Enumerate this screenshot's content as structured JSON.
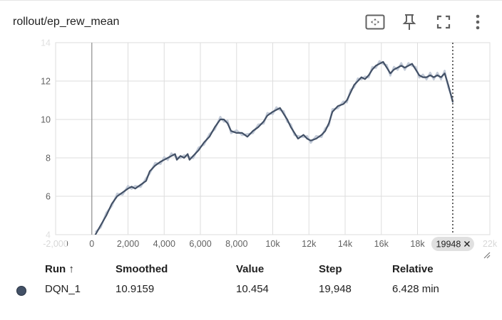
{
  "card": {
    "title": "rollout/ep_rew_mean",
    "toolbar": [
      {
        "name": "fit-domain-icon"
      },
      {
        "name": "pin-icon"
      },
      {
        "name": "fullscreen-icon"
      },
      {
        "name": "more-vert-icon"
      }
    ]
  },
  "colors": {
    "line": "#425066",
    "raw": "#c3cbd8",
    "grid": "#dddddd",
    "axis": "#999999",
    "text": "#616161",
    "chip": "#e0e0e0"
  },
  "chart_data": {
    "type": "line",
    "xlabel": "",
    "ylabel": "",
    "x_ticks": [
      {
        "value": -2000,
        "label": "-2,000"
      },
      {
        "value": 0,
        "label": "0"
      },
      {
        "value": 2000,
        "label": "2,000"
      },
      {
        "value": 4000,
        "label": "4,000"
      },
      {
        "value": 6000,
        "label": "6,000"
      },
      {
        "value": 8000,
        "label": "8,000"
      },
      {
        "value": 10000,
        "label": "10k"
      },
      {
        "value": 12000,
        "label": "12k"
      },
      {
        "value": 14000,
        "label": "14k"
      },
      {
        "value": 16000,
        "label": "16k"
      },
      {
        "value": 18000,
        "label": "18k"
      },
      {
        "value": 22000,
        "label": "22k"
      }
    ],
    "y_ticks": [
      4,
      6,
      8,
      10,
      12,
      14
    ],
    "xlim": [
      -2000,
      22000
    ],
    "ylim": [
      4,
      14
    ],
    "cursor": {
      "step": 19948,
      "label": "19948"
    },
    "series": [
      {
        "name": "DQN_1",
        "points": [
          [
            200,
            4.0
          ],
          [
            500,
            4.5
          ],
          [
            800,
            5.0
          ],
          [
            1100,
            5.6
          ],
          [
            1400,
            6.0
          ],
          [
            1700,
            6.2
          ],
          [
            2000,
            6.4
          ],
          [
            2200,
            6.5
          ],
          [
            2400,
            6.4
          ],
          [
            2700,
            6.6
          ],
          [
            3000,
            6.8
          ],
          [
            3200,
            7.3
          ],
          [
            3500,
            7.6
          ],
          [
            3800,
            7.8
          ],
          [
            4000,
            7.9
          ],
          [
            4200,
            8.0
          ],
          [
            4400,
            8.1
          ],
          [
            4600,
            8.2
          ],
          [
            4700,
            7.9
          ],
          [
            4900,
            8.1
          ],
          [
            5100,
            8.0
          ],
          [
            5300,
            8.2
          ],
          [
            5400,
            7.9
          ],
          [
            5600,
            8.1
          ],
          [
            5900,
            8.4
          ],
          [
            6200,
            8.8
          ],
          [
            6500,
            9.1
          ],
          [
            6800,
            9.6
          ],
          [
            7100,
            10.0
          ],
          [
            7300,
            10.0
          ],
          [
            7500,
            9.8
          ],
          [
            7700,
            9.4
          ],
          [
            8000,
            9.3
          ],
          [
            8300,
            9.3
          ],
          [
            8600,
            9.1
          ],
          [
            8900,
            9.4
          ],
          [
            9200,
            9.6
          ],
          [
            9500,
            9.9
          ],
          [
            9700,
            10.2
          ],
          [
            10000,
            10.4
          ],
          [
            10200,
            10.5
          ],
          [
            10400,
            10.6
          ],
          [
            10600,
            10.3
          ],
          [
            10800,
            10.0
          ],
          [
            11000,
            9.6
          ],
          [
            11200,
            9.3
          ],
          [
            11400,
            9.0
          ],
          [
            11700,
            9.2
          ],
          [
            11900,
            9.0
          ],
          [
            12100,
            8.9
          ],
          [
            12400,
            9.0
          ],
          [
            12700,
            9.2
          ],
          [
            12900,
            9.4
          ],
          [
            13100,
            9.8
          ],
          [
            13300,
            10.4
          ],
          [
            13600,
            10.7
          ],
          [
            13900,
            10.8
          ],
          [
            14100,
            11.0
          ],
          [
            14300,
            11.4
          ],
          [
            14500,
            11.8
          ],
          [
            14700,
            12.0
          ],
          [
            14900,
            12.2
          ],
          [
            15100,
            12.1
          ],
          [
            15300,
            12.3
          ],
          [
            15500,
            12.6
          ],
          [
            15700,
            12.8
          ],
          [
            15900,
            12.9
          ],
          [
            16100,
            13.0
          ],
          [
            16300,
            12.7
          ],
          [
            16500,
            12.4
          ],
          [
            16700,
            12.6
          ],
          [
            16900,
            12.7
          ],
          [
            17100,
            12.8
          ],
          [
            17300,
            12.7
          ],
          [
            17500,
            12.8
          ],
          [
            17700,
            12.9
          ],
          [
            17900,
            12.6
          ],
          [
            18100,
            12.3
          ],
          [
            18300,
            12.2
          ],
          [
            18500,
            12.2
          ],
          [
            18700,
            12.3
          ],
          [
            18900,
            12.2
          ],
          [
            19100,
            12.3
          ],
          [
            19300,
            12.2
          ],
          [
            19500,
            12.4
          ],
          [
            19700,
            11.8
          ],
          [
            19948,
            10.92
          ]
        ]
      }
    ]
  },
  "table": {
    "headers": {
      "run": "Run",
      "sort_icon": "↑",
      "smoothed": "Smoothed",
      "value": "Value",
      "step": "Step",
      "relative": "Relative"
    },
    "rows": [
      {
        "run": "DQN_1",
        "color": "#425066",
        "smoothed": "10.9159",
        "value": "10.454",
        "step": "19,948",
        "relative": "6.428 min"
      }
    ]
  }
}
